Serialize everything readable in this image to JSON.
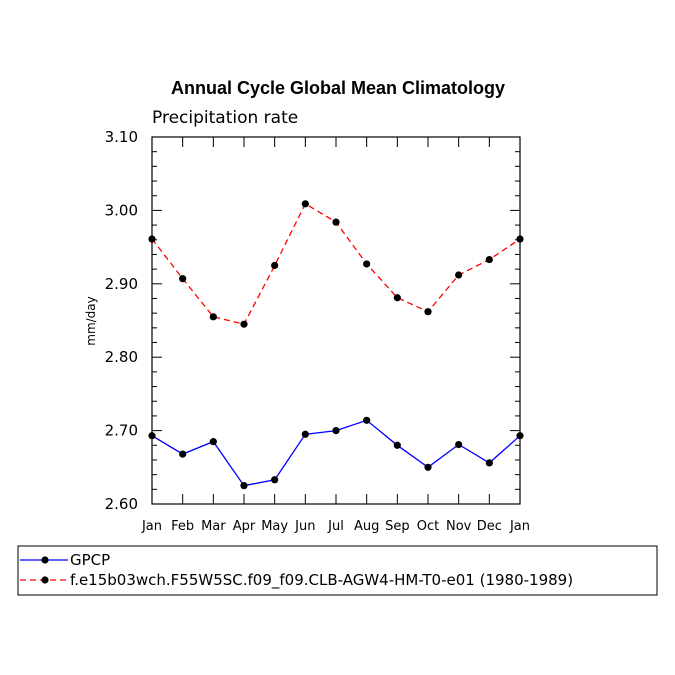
{
  "chart_data": {
    "type": "line",
    "title": "Annual Cycle Global Mean Climatology",
    "subtitle": "Precipitation rate",
    "ylabel": "mm/day",
    "xlabel": "",
    "categories": [
      "Jan",
      "Feb",
      "Mar",
      "Apr",
      "May",
      "Jun",
      "Jul",
      "Aug",
      "Sep",
      "Oct",
      "Nov",
      "Dec",
      "Jan"
    ],
    "ylim": [
      2.6,
      3.1
    ],
    "yticks": [
      "2.60",
      "2.70",
      "2.80",
      "2.90",
      "3.00",
      "3.10"
    ],
    "grid": false,
    "legend_position": "bottom",
    "series": [
      {
        "name": "GPCP",
        "color": "#0000ff",
        "style": "solid",
        "values": [
          2.693,
          2.668,
          2.685,
          2.625,
          2.633,
          2.695,
          2.7,
          2.714,
          2.68,
          2.65,
          2.681,
          2.656,
          2.693
        ]
      },
      {
        "name": "f.e15b03wch.F55W5SC.f09_f09.CLB-AGW4-HM-T0-e01 (1980-1989)",
        "color": "#ff0000",
        "style": "dashed",
        "values": [
          2.961,
          2.907,
          2.855,
          2.845,
          2.925,
          3.009,
          2.984,
          2.927,
          2.881,
          2.862,
          2.912,
          2.933,
          2.961
        ]
      }
    ]
  }
}
